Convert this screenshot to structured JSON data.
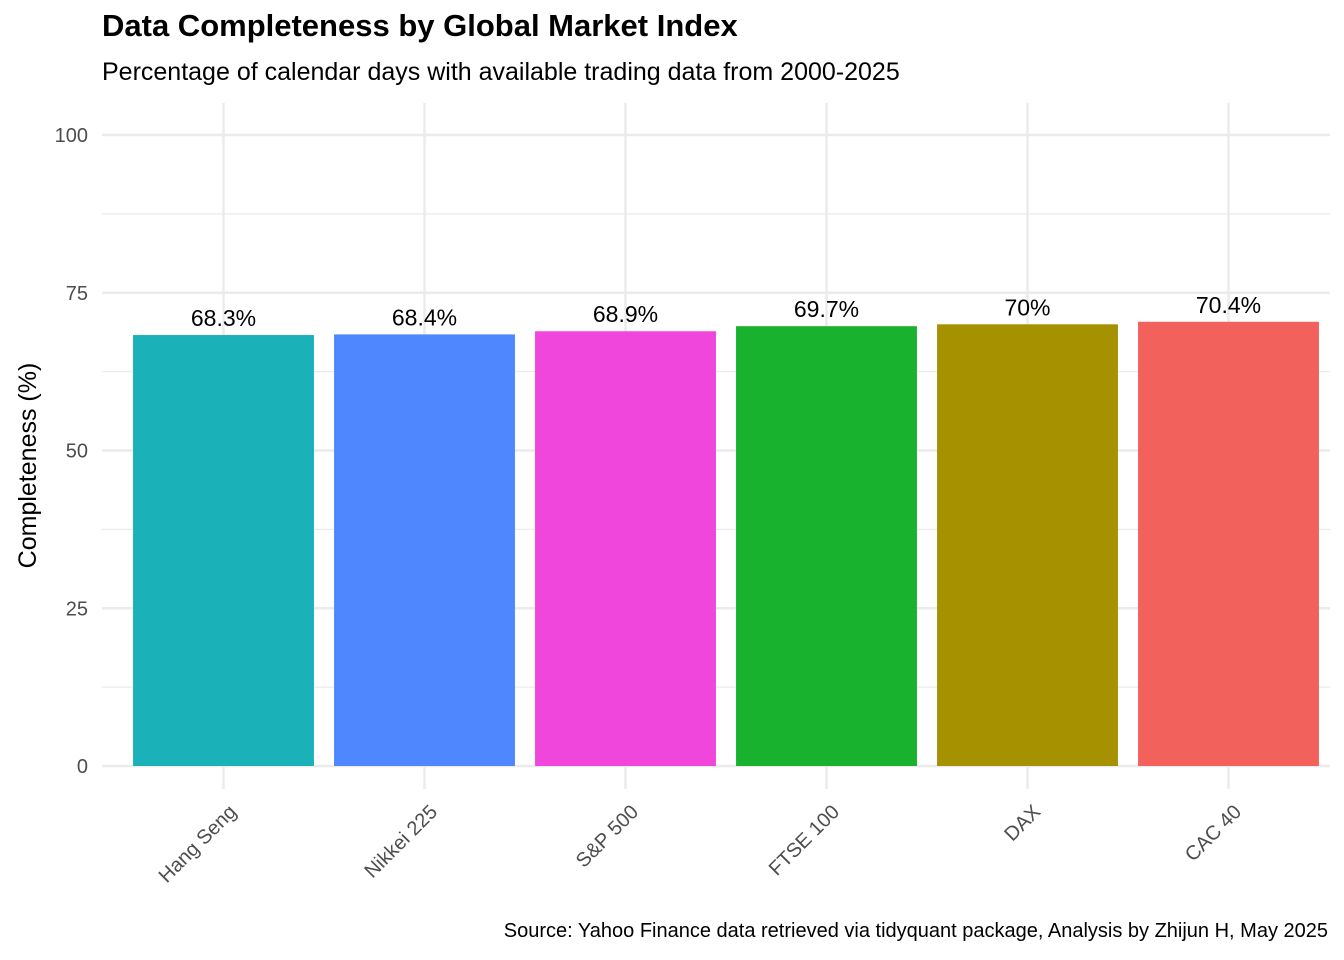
{
  "chart_data": {
    "type": "bar",
    "title": "Data Completeness by Global Market Index",
    "subtitle": "Percentage of calendar days with available trading data from 2000-2025",
    "xlabel": "",
    "ylabel": "Completeness (%)",
    "caption": "Source: Yahoo Finance data retrieved via tidyquant package, Analysis by Zhijun H, May 2025",
    "categories": [
      "Hang Seng",
      "Nikkei 225",
      "S&P 500",
      "FTSE 100",
      "DAX",
      "CAC 40"
    ],
    "values": [
      68.3,
      68.4,
      68.9,
      69.7,
      70.0,
      70.4
    ],
    "data_labels": [
      "68.3%",
      "68.4%",
      "68.9%",
      "69.7%",
      "70%",
      "70.4%"
    ],
    "colors": [
      "#1AB2B8",
      "#4E87FF",
      "#F046DC",
      "#19B22E",
      "#A69100",
      "#F2615C"
    ],
    "ylim": [
      0,
      100
    ],
    "yticks": [
      0,
      25,
      50,
      75,
      100
    ],
    "grid": true,
    "legend": "none"
  }
}
